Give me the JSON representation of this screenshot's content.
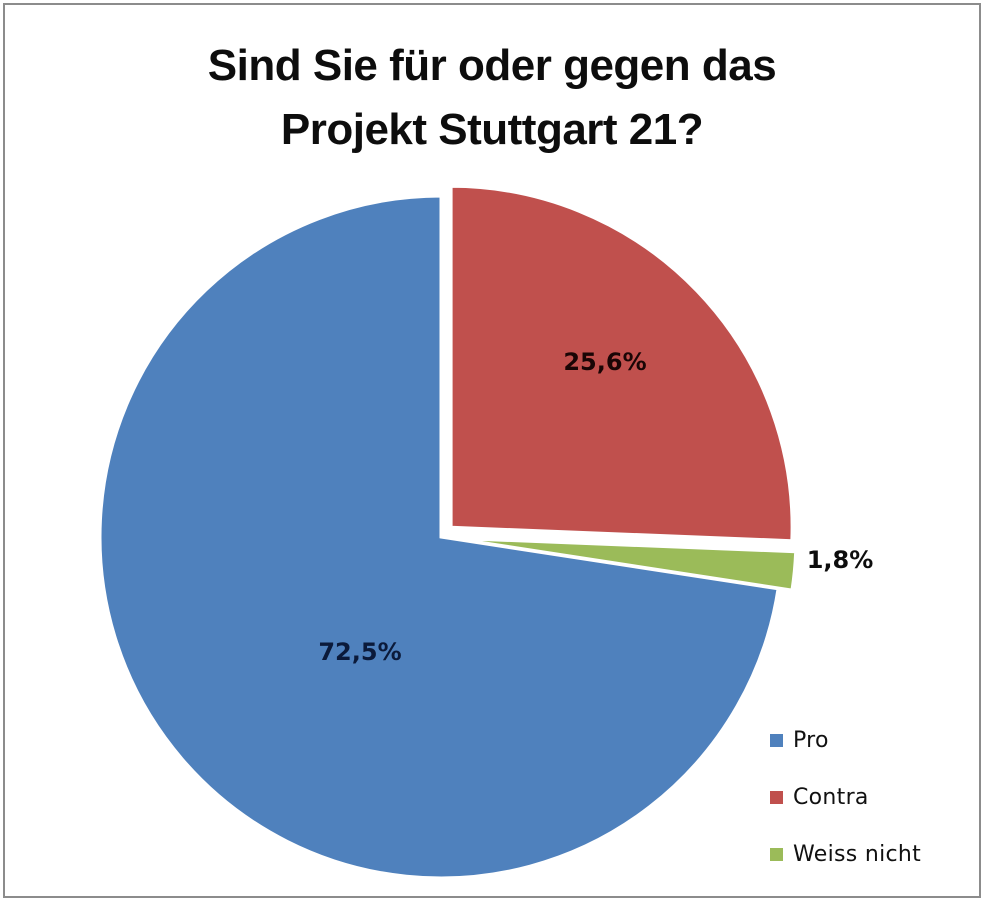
{
  "chart_data": {
    "type": "pie",
    "title": "Sind Sie für oder gegen das Projekt Stuttgart 21?",
    "title_lines": [
      "Sind Sie für oder gegen das",
      "Projekt Stuttgart 21?"
    ],
    "categories": [
      "Pro",
      "Contra",
      "Weiss nicht"
    ],
    "values": [
      72.5,
      25.6,
      1.8
    ],
    "labels": [
      "72,5%",
      "25,6%",
      "1,8%"
    ],
    "colors": [
      "#4f81bd",
      "#c0504d",
      "#9bbb59"
    ],
    "exploded": [
      false,
      true,
      true
    ],
    "start_angle_deg": 0,
    "direction": "clockwise",
    "draw_order": [
      "Contra",
      "Weiss nicht",
      "Pro"
    ],
    "legend_position": "bottom-right",
    "xlabel": "",
    "ylabel": ""
  },
  "legend": {
    "items": [
      {
        "label": "Pro",
        "color": "#4f81bd"
      },
      {
        "label": "Contra",
        "color": "#c0504d"
      },
      {
        "label": "Weiss nicht",
        "color": "#9bbb59"
      }
    ]
  }
}
